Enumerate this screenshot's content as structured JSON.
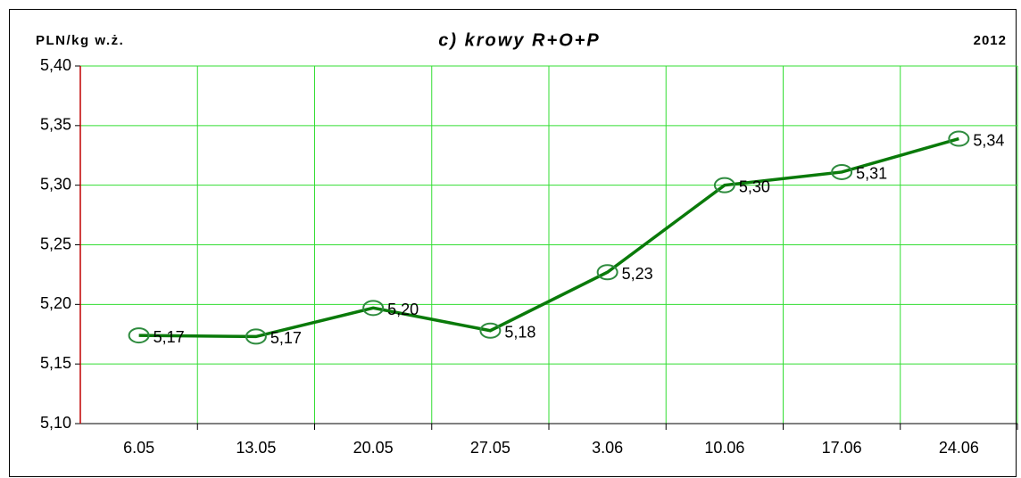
{
  "chart_data": {
    "type": "line",
    "title": "c) krowy R+O+P",
    "y_label": "PLN/kg w.ż.",
    "annotation": "2012",
    "categories": [
      "6.05",
      "13.05",
      "20.05",
      "27.05",
      "3.06",
      "10.06",
      "17.06",
      "24.06"
    ],
    "series": [
      {
        "name": "krowy R+O+P",
        "color": "#0a7a0a",
        "values": [
          5.174,
          5.173,
          5.197,
          5.178,
          5.227,
          5.3,
          5.311,
          5.339
        ],
        "value_labels": [
          "5,17",
          "5,17",
          "5,20",
          "5,18",
          "5,23",
          "5,30",
          "5,31",
          "5,34"
        ]
      }
    ],
    "ylim": [
      5.1,
      5.4
    ],
    "yticks": [
      {
        "value": 5.1,
        "label": "5,10"
      },
      {
        "value": 5.15,
        "label": "5,15"
      },
      {
        "value": 5.2,
        "label": "5,20"
      },
      {
        "value": 5.25,
        "label": "5,25"
      },
      {
        "value": 5.3,
        "label": "5,30"
      },
      {
        "value": 5.35,
        "label": "5,35"
      },
      {
        "value": 5.4,
        "label": "5,40"
      }
    ],
    "grid": true,
    "grid_color": "#33dd33",
    "marker_color": "#2e8b3e"
  }
}
